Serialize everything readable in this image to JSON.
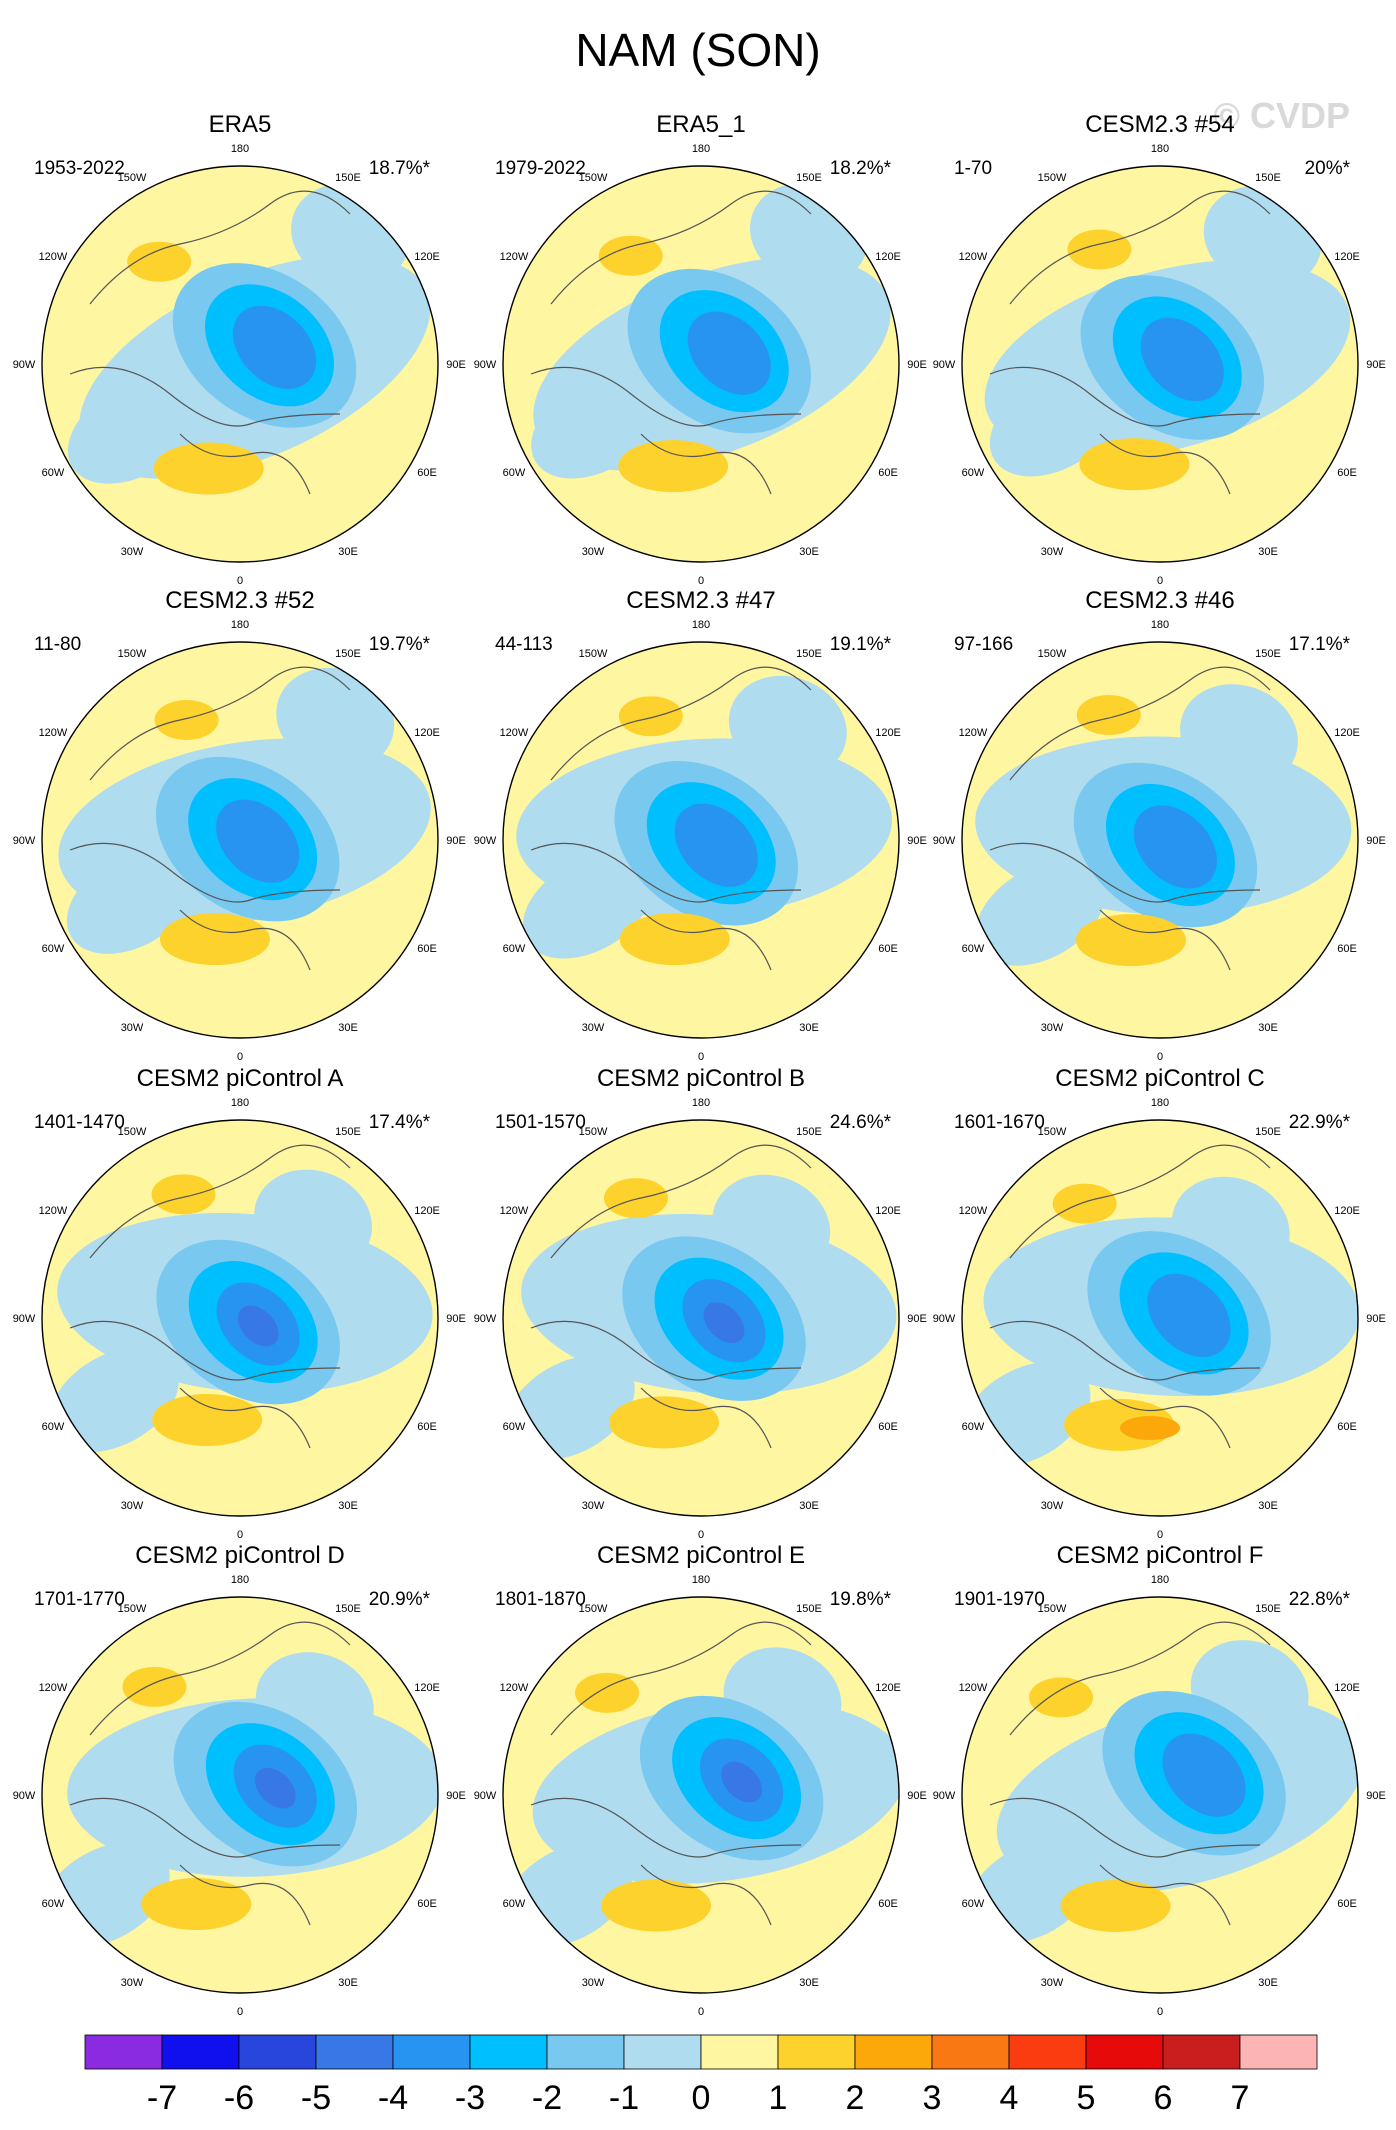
{
  "chart_data": {
    "type": "polar-contour-map-panels",
    "title": "NAM (SON)",
    "watermark": "© CVDP",
    "lon_labels": [
      "180",
      "150E",
      "120E",
      "90E",
      "60E",
      "30E",
      "0",
      "30W",
      "60W",
      "90W",
      "120W",
      "150W"
    ],
    "colorbar": {
      "ticks": [
        "-7",
        "-6",
        "-5",
        "-4",
        "-3",
        "-2",
        "-1",
        "0",
        "1",
        "2",
        "3",
        "4",
        "5",
        "6",
        "7"
      ],
      "colors": [
        "#8a2be2",
        "#1010ee",
        "#2845dc",
        "#3878e6",
        "#2894f2",
        "#00bfff",
        "#78c8f0",
        "#b0dcf0",
        "#fef6a0",
        "#fdd22c",
        "#fca80a",
        "#fa7814",
        "#fa3c10",
        "#e60a0a",
        "#c81e1e",
        "#fcb4b4"
      ]
    },
    "panels": [
      {
        "title": "ERA5",
        "period": "1953-2022",
        "pct": "18.7%*"
      },
      {
        "title": "ERA5_1",
        "period": "1979-2022",
        "pct": "18.2%*"
      },
      {
        "title": "CESM2.3 #54",
        "period": "1-70",
        "pct": "20%*"
      },
      {
        "title": "CESM2.3 #52",
        "period": "11-80",
        "pct": "19.7%*"
      },
      {
        "title": "CESM2.3 #47",
        "period": "44-113",
        "pct": "19.1%*"
      },
      {
        "title": "CESM2.3 #46",
        "period": "97-166",
        "pct": "17.1%*"
      },
      {
        "title": "CESM2 piControl A",
        "period": "1401-1470",
        "pct": "17.4%*"
      },
      {
        "title": "CESM2 piControl B",
        "period": "1501-1570",
        "pct": "24.6%*"
      },
      {
        "title": "CESM2 piControl C",
        "period": "1601-1670",
        "pct": "22.9%*"
      },
      {
        "title": "CESM2 piControl D",
        "period": "1701-1770",
        "pct": "20.9%*"
      },
      {
        "title": "CESM2 piControl E",
        "period": "1801-1870",
        "pct": "19.8%*"
      },
      {
        "title": "CESM2 piControl F",
        "period": "1901-1970",
        "pct": "22.8%*"
      }
    ]
  }
}
